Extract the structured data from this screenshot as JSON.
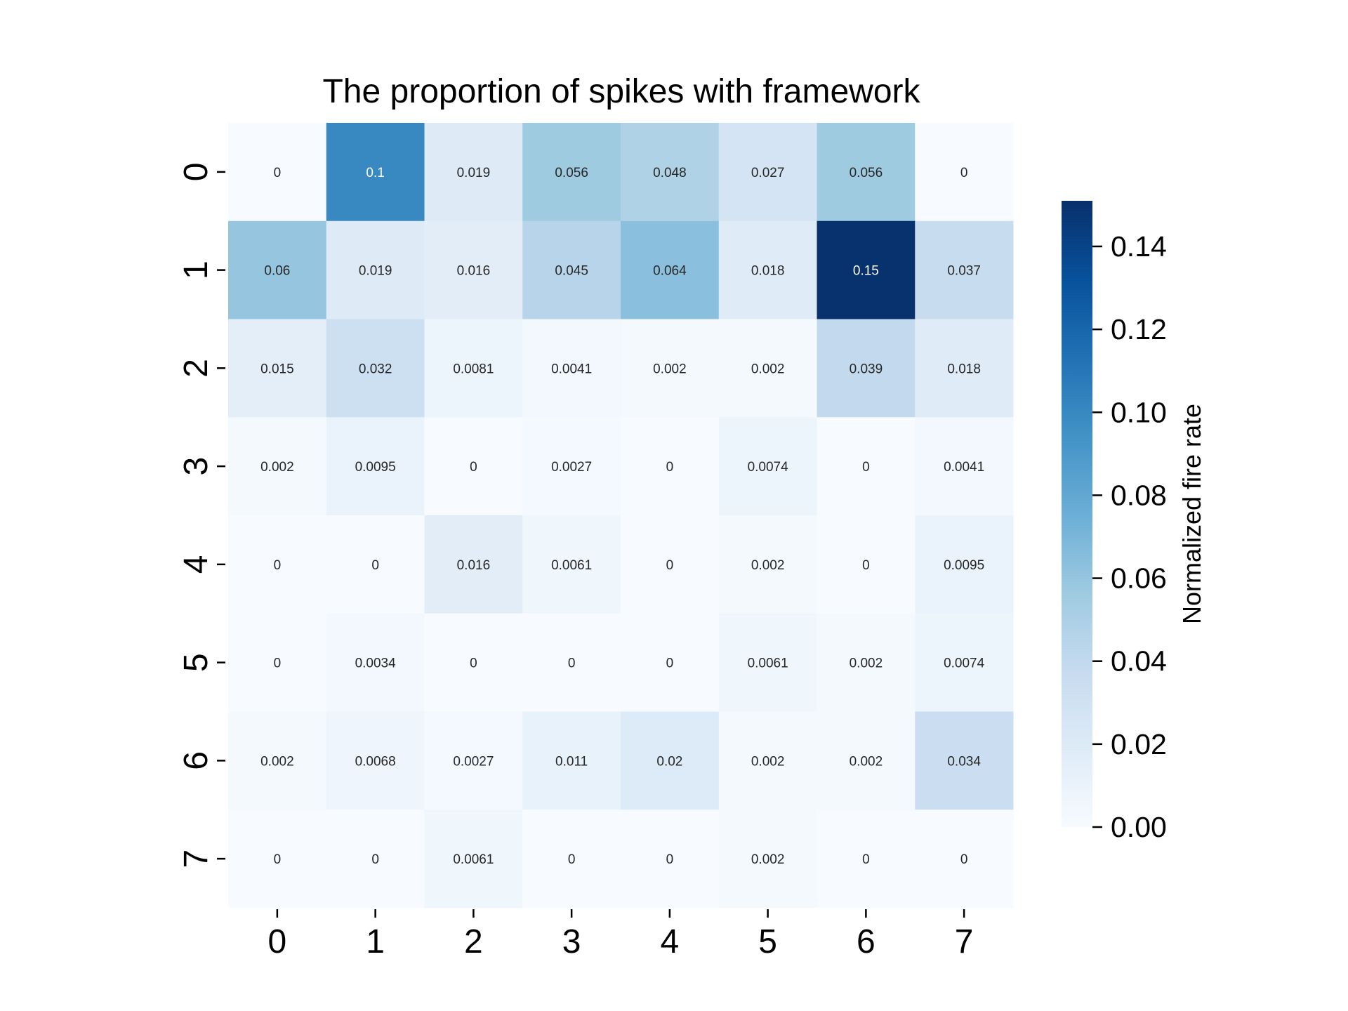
{
  "chart_data": {
    "type": "heatmap",
    "title": "The proportion of spikes with framework",
    "x_categories": [
      "0",
      "1",
      "2",
      "3",
      "4",
      "5",
      "6",
      "7"
    ],
    "y_categories": [
      "0",
      "1",
      "2",
      "3",
      "4",
      "5",
      "6",
      "7"
    ],
    "values": [
      [
        0,
        0.1,
        0.019,
        0.056,
        0.048,
        0.027,
        0.056,
        0
      ],
      [
        0.06,
        0.019,
        0.016,
        0.045,
        0.064,
        0.018,
        0.15,
        0.037
      ],
      [
        0.015,
        0.032,
        0.0081,
        0.0041,
        0.002,
        0.002,
        0.039,
        0.018
      ],
      [
        0.002,
        0.0095,
        0,
        0.0027,
        0,
        0.0074,
        0,
        0.0041
      ],
      [
        0,
        0,
        0.016,
        0.0061,
        0,
        0.002,
        0,
        0.0095
      ],
      [
        0,
        0.0034,
        0,
        0,
        0,
        0.0061,
        0.002,
        0.0074
      ],
      [
        0.002,
        0.0068,
        0.0027,
        0.011,
        0.02,
        0.002,
        0.002,
        0.034
      ],
      [
        0,
        0,
        0.0061,
        0,
        0,
        0.002,
        0,
        0
      ]
    ],
    "colorbar": {
      "label": "Normalized fire rate",
      "range": [
        0,
        0.151
      ],
      "ticks": [
        "0.00",
        "0.02",
        "0.04",
        "0.06",
        "0.08",
        "0.10",
        "0.12",
        "0.14"
      ],
      "colormap": "Blues",
      "color_low": "#f7fbff",
      "color_high": "#08306b"
    },
    "annotations": true,
    "grid": false
  }
}
